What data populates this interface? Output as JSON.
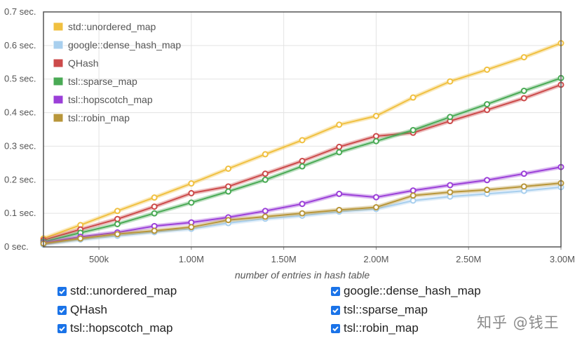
{
  "chart_data": {
    "type": "line",
    "xlabel": "number of entries in hash table",
    "ylabel": "",
    "xlim": [
      200000,
      3000000
    ],
    "ylim": [
      0,
      0.7
    ],
    "x_ticks": [
      {
        "value": 500000,
        "label": "500k"
      },
      {
        "value": 1000000,
        "label": "1.00M"
      },
      {
        "value": 1500000,
        "label": "1.50M"
      },
      {
        "value": 2000000,
        "label": "2.00M"
      },
      {
        "value": 2500000,
        "label": "2.50M"
      },
      {
        "value": 3000000,
        "label": "3.00M"
      }
    ],
    "y_ticks": [
      {
        "value": 0,
        "label": "0 sec."
      },
      {
        "value": 0.1,
        "label": "0.1 sec."
      },
      {
        "value": 0.2,
        "label": "0.2 sec."
      },
      {
        "value": 0.3,
        "label": "0.3 sec."
      },
      {
        "value": 0.4,
        "label": "0.4 sec."
      },
      {
        "value": 0.5,
        "label": "0.5 sec."
      },
      {
        "value": 0.6,
        "label": "0.6 sec."
      },
      {
        "value": 0.7,
        "label": "0.7 sec."
      }
    ],
    "grid": true,
    "legend_position": "top-left",
    "x": [
      200000,
      400000,
      600000,
      800000,
      1000000,
      1200000,
      1400000,
      1600000,
      1800000,
      2000000,
      2200000,
      2400000,
      2600000,
      2800000,
      3000000
    ],
    "series": [
      {
        "name": "std::unordered_map",
        "color": "#f0c040",
        "values": [
          0.025,
          0.065,
          0.107,
          0.147,
          0.189,
          0.233,
          0.276,
          0.318,
          0.364,
          0.39,
          0.445,
          0.493,
          0.528,
          0.565,
          0.607
        ]
      },
      {
        "name": "google::dense_hash_map",
        "color": "#a8cfee",
        "values": [
          0.007,
          0.022,
          0.033,
          0.044,
          0.054,
          0.071,
          0.084,
          0.093,
          0.105,
          0.113,
          0.138,
          0.15,
          0.158,
          0.167,
          0.178
        ]
      },
      {
        "name": "QHash",
        "color": "#cc4a4a",
        "values": [
          0.02,
          0.052,
          0.083,
          0.12,
          0.16,
          0.18,
          0.218,
          0.256,
          0.298,
          0.33,
          0.34,
          0.375,
          0.408,
          0.443,
          0.483
        ]
      },
      {
        "name": "tsl::sparse_map",
        "color": "#4aaa55",
        "values": [
          0.015,
          0.042,
          0.068,
          0.1,
          0.132,
          0.165,
          0.2,
          0.24,
          0.282,
          0.315,
          0.348,
          0.387,
          0.425,
          0.465,
          0.503
        ]
      },
      {
        "name": "tsl::hopscotch_map",
        "color": "#9b3fd8",
        "values": [
          0.012,
          0.03,
          0.043,
          0.062,
          0.073,
          0.088,
          0.107,
          0.128,
          0.158,
          0.148,
          0.168,
          0.184,
          0.199,
          0.218,
          0.238
        ]
      },
      {
        "name": "tsl::robin_map",
        "color": "#b8963a",
        "values": [
          0.01,
          0.025,
          0.038,
          0.048,
          0.059,
          0.08,
          0.09,
          0.1,
          0.11,
          0.118,
          0.153,
          0.163,
          0.17,
          0.18,
          0.19
        ]
      }
    ]
  },
  "controls": [
    {
      "label": "std::unordered_map",
      "checked": true
    },
    {
      "label": "google::dense_hash_map",
      "checked": true
    },
    {
      "label": "QHash",
      "checked": true
    },
    {
      "label": "tsl::sparse_map",
      "checked": true
    },
    {
      "label": "tsl::hopscotch_map",
      "checked": true
    },
    {
      "label": "tsl::robin_map",
      "checked": true
    }
  ],
  "watermark": "知乎 @钱王"
}
